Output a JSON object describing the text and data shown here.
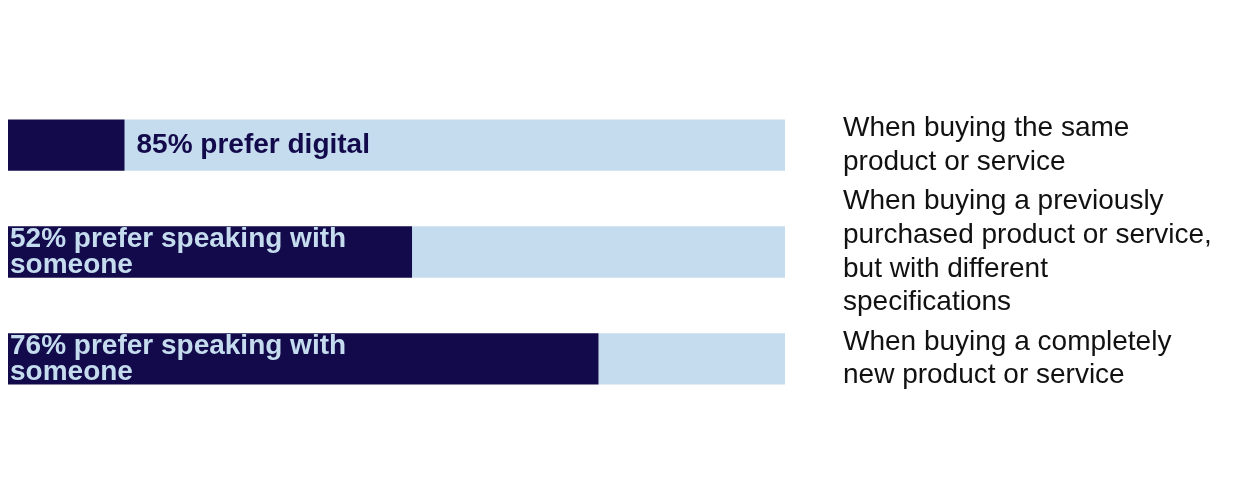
{
  "chart_data": {
    "type": "bar",
    "orientation": "horizontal",
    "stacked": true,
    "categories": [
      "When buying the same product or service",
      "When buying a previously purchased product or service, but with different specifications",
      "When buying a completely new product or service"
    ],
    "series": [
      {
        "color": "#120a4a",
        "values": [
          15,
          52,
          76
        ],
        "value_labels": [
          null,
          "52% prefer speaking with someone",
          "76% prefer speaking with someone"
        ]
      },
      {
        "color": "#c5dcef",
        "values": [
          85,
          48,
          24
        ],
        "value_labels": [
          "85% prefer digital",
          null,
          null
        ]
      }
    ],
    "xlim": [
      0,
      100
    ],
    "tick_labels": "y"
  }
}
